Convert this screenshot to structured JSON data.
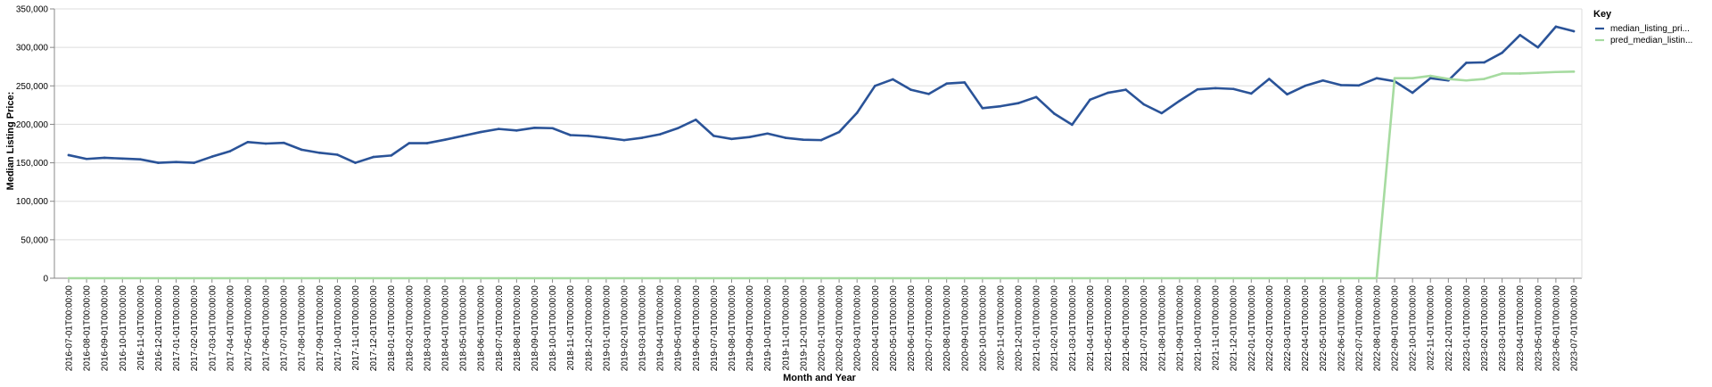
{
  "chart_data": {
    "type": "line",
    "xlabel": "Month and Year",
    "ylabel": "Median Listing Price:",
    "ylim": [
      0,
      350000
    ],
    "yticks": [
      "0",
      "50,000",
      "100,000",
      "150,000",
      "200,000",
      "250,000",
      "300,000",
      "350,000"
    ],
    "grid": "horizontal",
    "legend": {
      "title": "Key",
      "placement": "top-right",
      "entries": [
        "median_listing_pri...",
        "pred_median_listin..."
      ]
    },
    "x": [
      "2016-07-01T00:00:00",
      "2016-08-01T00:00:00",
      "2016-09-01T00:00:00",
      "2016-10-01T00:00:00",
      "2016-11-01T00:00:00",
      "2016-12-01T00:00:00",
      "2017-01-01T00:00:00",
      "2017-02-01T00:00:00",
      "2017-03-01T00:00:00",
      "2017-04-01T00:00:00",
      "2017-05-01T00:00:00",
      "2017-06-01T00:00:00",
      "2017-07-01T00:00:00",
      "2017-08-01T00:00:00",
      "2017-09-01T00:00:00",
      "2017-10-01T00:00:00",
      "2017-11-01T00:00:00",
      "2017-12-01T00:00:00",
      "2018-01-01T00:00:00",
      "2018-02-01T00:00:00",
      "2018-03-01T00:00:00",
      "2018-04-01T00:00:00",
      "2018-05-01T00:00:00",
      "2018-06-01T00:00:00",
      "2018-07-01T00:00:00",
      "2018-08-01T00:00:00",
      "2018-09-01T00:00:00",
      "2018-10-01T00:00:00",
      "2018-11-01T00:00:00",
      "2018-12-01T00:00:00",
      "2019-01-01T00:00:00",
      "2019-02-01T00:00:00",
      "2019-03-01T00:00:00",
      "2019-04-01T00:00:00",
      "2019-05-01T00:00:00",
      "2019-06-01T00:00:00",
      "2019-07-01T00:00:00",
      "2019-08-01T00:00:00",
      "2019-09-01T00:00:00",
      "2019-10-01T00:00:00",
      "2019-11-01T00:00:00",
      "2019-12-01T00:00:00",
      "2020-01-01T00:00:00",
      "2020-02-01T00:00:00",
      "2020-03-01T00:00:00",
      "2020-04-01T00:00:00",
      "2020-05-01T00:00:00",
      "2020-06-01T00:00:00",
      "2020-07-01T00:00:00",
      "2020-08-01T00:00:00",
      "2020-09-01T00:00:00",
      "2020-10-01T00:00:00",
      "2020-11-01T00:00:00",
      "2020-12-01T00:00:00",
      "2021-01-01T00:00:00",
      "2021-02-01T00:00:00",
      "2021-03-01T00:00:00",
      "2021-04-01T00:00:00",
      "2021-05-01T00:00:00",
      "2021-06-01T00:00:00",
      "2021-07-01T00:00:00",
      "2021-08-01T00:00:00",
      "2021-09-01T00:00:00",
      "2021-10-01T00:00:00",
      "2021-11-01T00:00:00",
      "2021-12-01T00:00:00",
      "2022-01-01T00:00:00",
      "2022-02-01T00:00:00",
      "2022-03-01T00:00:00",
      "2022-04-01T00:00:00",
      "2022-05-01T00:00:00",
      "2022-06-01T00:00:00",
      "2022-07-01T00:00:00",
      "2022-08-01T00:00:00",
      "2022-09-01T00:00:00",
      "2022-10-01T00:00:00",
      "2022-11-01T00:00:00",
      "2022-12-01T00:00:00",
      "2023-01-01T00:00:00",
      "2023-02-01T00:00:00",
      "2023-03-01T00:00:00",
      "2023-04-01T00:00:00",
      "2023-05-01T00:00:00",
      "2023-06-01T00:00:00",
      "2023-07-01T00:00:00"
    ],
    "series": [
      {
        "name": "median_listing_pri...",
        "color": "#2a5398",
        "values": [
          160000,
          155000,
          156500,
          155500,
          154500,
          150000,
          151000,
          150000,
          158000,
          165000,
          177000,
          175000,
          176000,
          167000,
          163000,
          160500,
          150000,
          157500,
          159500,
          175500,
          175500,
          180000,
          185000,
          190000,
          194000,
          192000,
          195500,
          195000,
          186000,
          185000,
          182500,
          179500,
          182500,
          187000,
          195000,
          206000,
          185000,
          181000,
          183500,
          188000,
          182500,
          180000,
          179500,
          190000,
          215000,
          250000,
          258500,
          245000,
          239500,
          253000,
          254500,
          221000,
          223500,
          227500,
          235500,
          214000,
          199500,
          232000,
          241000,
          245000,
          226000,
          214500,
          230500,
          245500,
          247000,
          246000,
          240000,
          259000,
          239000,
          250000,
          257000,
          251000,
          250500,
          260000,
          256000,
          241000,
          260000,
          257000,
          280000,
          280500,
          293000,
          316000,
          300000,
          327000,
          321000
        ]
      },
      {
        "name": "pred_median_listin...",
        "color": "#a6dba0",
        "values": [
          0,
          0,
          0,
          0,
          0,
          0,
          0,
          0,
          0,
          0,
          0,
          0,
          0,
          0,
          0,
          0,
          0,
          0,
          0,
          0,
          0,
          0,
          0,
          0,
          0,
          0,
          0,
          0,
          0,
          0,
          0,
          0,
          0,
          0,
          0,
          0,
          0,
          0,
          0,
          0,
          0,
          0,
          0,
          0,
          0,
          0,
          0,
          0,
          0,
          0,
          0,
          0,
          0,
          0,
          0,
          0,
          0,
          0,
          0,
          0,
          0,
          0,
          0,
          0,
          0,
          0,
          0,
          0,
          0,
          0,
          0,
          0,
          0,
          0,
          260000,
          260000,
          263000,
          259000,
          257000,
          259000,
          266000,
          266000,
          267000,
          268000,
          268500
        ]
      }
    ]
  }
}
